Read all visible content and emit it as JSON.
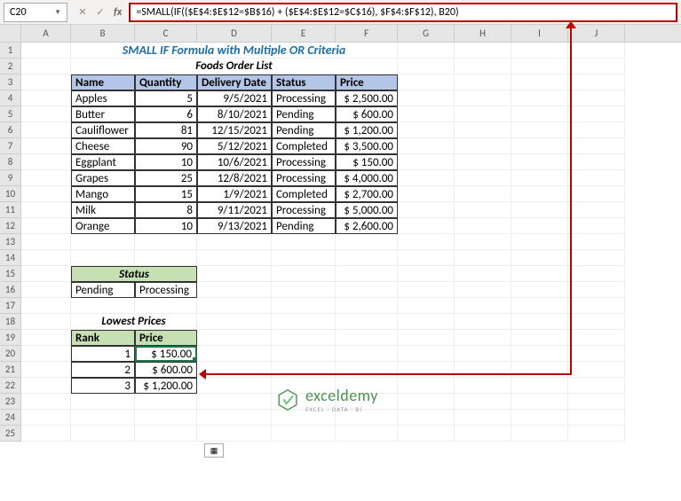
{
  "namebox": "C20",
  "formula": "=SMALL(IF(($E$4:$E$12=$B$16) + ($E$4:$E$12=$C$16), $F$4:$F$12), B20)",
  "columns": [
    "A",
    "B",
    "C",
    "D",
    "E",
    "F",
    "G",
    "H",
    "I",
    "J"
  ],
  "rows": [
    "1",
    "2",
    "3",
    "4",
    "5",
    "6",
    "7",
    "8",
    "9",
    "10",
    "11",
    "12",
    "13",
    "14",
    "15",
    "16",
    "17",
    "18",
    "19",
    "20",
    "21",
    "22",
    "23",
    "24",
    "25"
  ],
  "title": "SMALL IF Formula with Multiple OR Criteria",
  "subtitle": "Foods Order List",
  "headers": {
    "name": "Name",
    "qty": "Quantity",
    "date": "Delivery Date",
    "status": "Status",
    "price": "Price"
  },
  "table": [
    {
      "name": "Apples",
      "qty": "5",
      "date": "9/5/2021",
      "status": "Processing",
      "price": "$ 2,500.00"
    },
    {
      "name": "Butter",
      "qty": "6",
      "date": "8/10/2021",
      "status": "Pending",
      "price": "$    600.00"
    },
    {
      "name": "Cauliflower",
      "qty": "81",
      "date": "12/15/2021",
      "status": "Pending",
      "price": "$ 1,200.00"
    },
    {
      "name": "Cheese",
      "qty": "90",
      "date": "5/12/2021",
      "status": "Completed",
      "price": "$ 3,500.00"
    },
    {
      "name": "Eggplant",
      "qty": "10",
      "date": "10/6/2021",
      "status": "Processing",
      "price": "$    150.00"
    },
    {
      "name": "Grapes",
      "qty": "25",
      "date": "12/8/2021",
      "status": "Processing",
      "price": "$ 4,000.00"
    },
    {
      "name": "Mango",
      "qty": "15",
      "date": "1/9/2021",
      "status": "Completed",
      "price": "$ 2,700.00"
    },
    {
      "name": "Milk",
      "qty": "8",
      "date": "9/11/2021",
      "status": "Processing",
      "price": "$ 5,000.00"
    },
    {
      "name": "Orange",
      "qty": "10",
      "date": "9/13/2021",
      "status": "Pending",
      "price": "$ 2,600.00"
    }
  ],
  "status_header": "Status",
  "status_values": [
    "Pending",
    "Processing"
  ],
  "lowest_title": "Lowest Prices",
  "rank_headers": {
    "rank": "Rank",
    "price": "Price"
  },
  "ranks": [
    {
      "rank": "1",
      "price": "$    150.00"
    },
    {
      "rank": "2",
      "price": "$    600.00"
    },
    {
      "rank": "3",
      "price": "$ 1,200.00"
    }
  ],
  "logo": {
    "name": "exceldemy",
    "sub": "EXCEL · DATA · BI"
  },
  "colors": {
    "title": "#1f6fa5",
    "th_bg": "#b4c6e7",
    "green_bg": "#c6e0b4",
    "arrow": "#c00000",
    "select": "#217346"
  }
}
